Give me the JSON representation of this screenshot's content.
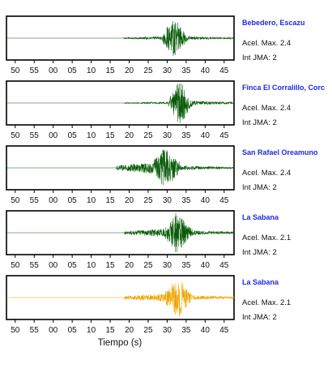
{
  "chart_data": {
    "type": "line",
    "xlabel": "Tiempo (s)",
    "x_tick_labels": [
      "50",
      "55",
      "00",
      "05",
      "10",
      "15",
      "20",
      "25",
      "30",
      "35",
      "40",
      "45"
    ],
    "x_ticks_seconds": [
      -10,
      -5,
      0,
      5,
      10,
      15,
      20,
      25,
      30,
      35,
      40,
      45
    ],
    "xlim_seconds": [
      -12.3,
      47.6
    ],
    "panels": [
      {
        "station": "Bebedero, Escazu",
        "accel": "Acel. Max. 2.4",
        "jma": "Int JMA: 2",
        "color": "#0a5c0a",
        "onset_s": 18.6,
        "peak_s": 31.8,
        "peak_rel": 1.0,
        "pre_amp_rel": 0.08,
        "tail_amp_rel": 0.06
      },
      {
        "station": "Finca El Corralillo, Corc",
        "accel": "Acel. Max. 2.4",
        "jma": "Int JMA: 2",
        "color": "#0a5c0a",
        "onset_s": 18.8,
        "peak_s": 33.3,
        "peak_rel": 1.0,
        "pre_amp_rel": 0.05,
        "tail_amp_rel": 0.08
      },
      {
        "station": "San Rafael Oreamuno",
        "accel": "Acel. Max. 2.4",
        "jma": "Int JMA: 2",
        "color": "#0a5c0a",
        "onset_s": 16.7,
        "peak_s": 29.5,
        "peak_rel": 1.0,
        "pre_amp_rel": 0.3,
        "tail_amp_rel": 0.1
      },
      {
        "station": "La Sabana",
        "accel": "Acel. Max. 2.1",
        "jma": "Int JMA: 2",
        "color": "#0a5c0a",
        "onset_s": 18.8,
        "peak_s": 32.6,
        "peak_rel": 1.0,
        "pre_amp_rel": 0.2,
        "tail_amp_rel": 0.1
      },
      {
        "station": "La Sabana",
        "accel": "Acel. Max. 2.1",
        "jma": "Int JMA: 2",
        "color": "#f0a500",
        "onset_s": 18.8,
        "peak_s": 32.6,
        "peak_rel": 1.0,
        "pre_amp_rel": 0.2,
        "tail_amp_rel": 0.1
      }
    ]
  }
}
